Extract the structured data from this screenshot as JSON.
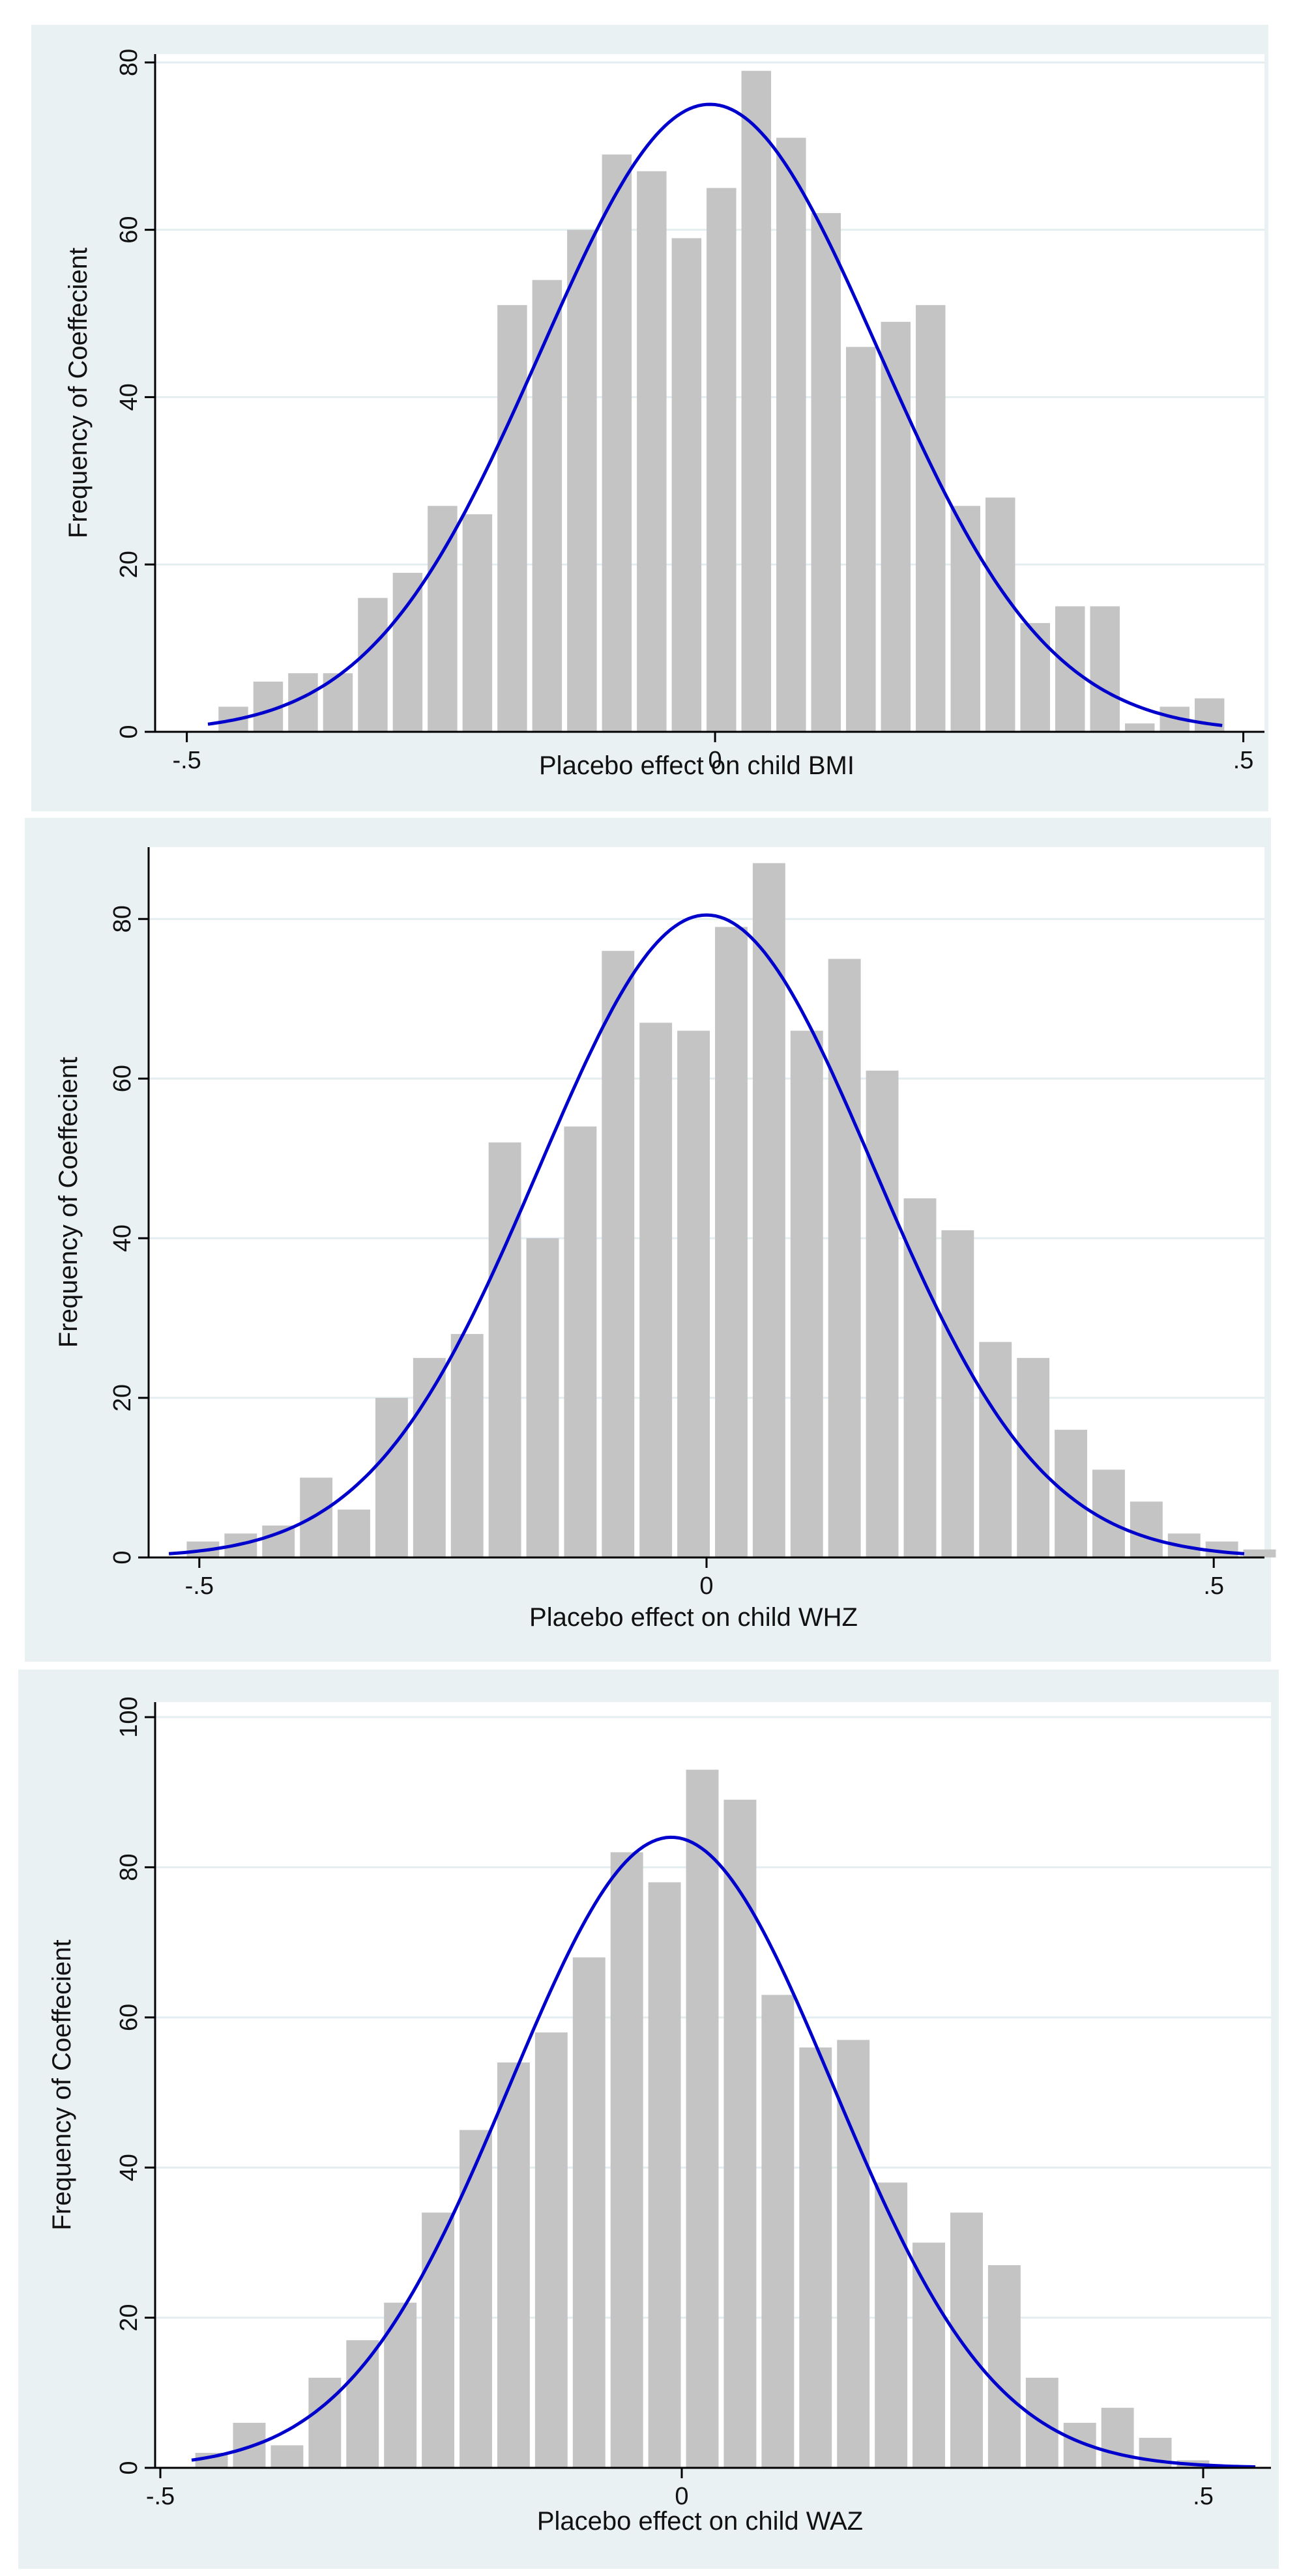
{
  "colors": {
    "panel_bg": "#eaf1f3",
    "plot_bg": "#ffffff",
    "bar": "#c4c4c4",
    "curve": "#0000cc",
    "grid": "#e4eef1",
    "axis": "#000000"
  },
  "chart_data": [
    {
      "type": "bar",
      "title": "",
      "xlabel": "Placebo effect on child BMI",
      "ylabel": "Frequency of Coeffecient",
      "xlim": [
        -0.53,
        0.52
      ],
      "ylim": [
        0,
        81
      ],
      "xticks": [
        -0.5,
        0,
        0.5
      ],
      "xtick_labels": [
        "-.5",
        "0",
        ".5"
      ],
      "yticks": [
        0,
        20,
        40,
        60,
        80
      ],
      "ytick_labels": [
        "0",
        "20",
        "40",
        "60",
        "80"
      ],
      "grid": true,
      "bin_start": -0.4725,
      "bin_width": 0.033,
      "values": [
        3,
        6,
        7,
        7,
        16,
        19,
        27,
        26,
        51,
        54,
        60,
        69,
        67,
        59,
        65,
        79,
        71,
        62,
        46,
        49,
        51,
        27,
        28,
        13,
        15,
        15,
        1,
        3,
        4
      ],
      "series": [
        {
          "name": "normal density",
          "type": "line",
          "mean": -0.005,
          "sd": 0.16,
          "peak": 75,
          "x_range": [
            -0.48,
            0.48
          ]
        }
      ]
    },
    {
      "type": "bar",
      "title": "",
      "xlabel": "Placebo effect on child WHZ",
      "ylabel": "Frequency of Coeffecient",
      "xlim": [
        -0.55,
        0.55
      ],
      "ylim": [
        0,
        89
      ],
      "xticks": [
        -0.5,
        0,
        0.5
      ],
      "xtick_labels": [
        "-.5",
        "0",
        ".5"
      ],
      "yticks": [
        0,
        20,
        40,
        60,
        80
      ],
      "ytick_labels": [
        "0",
        "20",
        "40",
        "60",
        "80"
      ],
      "grid": true,
      "bin_start": -0.515,
      "bin_width": 0.0372,
      "values": [
        2,
        3,
        4,
        10,
        6,
        20,
        25,
        28,
        52,
        40,
        54,
        76,
        67,
        66,
        79,
        87,
        66,
        75,
        61,
        45,
        41,
        27,
        25,
        16,
        11,
        7,
        3,
        2,
        1
      ],
      "series": [
        {
          "name": "normal density",
          "type": "line",
          "mean": 0.0,
          "sd": 0.165,
          "peak": 80.5,
          "x_range": [
            -0.53,
            0.53
          ]
        }
      ]
    },
    {
      "type": "bar",
      "title": "",
      "xlabel": "Placebo effect on child WAZ",
      "ylabel": "Frequency of Coeffecient",
      "xlim": [
        -0.505,
        0.565
      ],
      "ylim": [
        0,
        102
      ],
      "xticks": [
        -0.5,
        0,
        0.5
      ],
      "xtick_labels": [
        "-.5",
        "0",
        ".5"
      ],
      "yticks": [
        0,
        20,
        40,
        60,
        80,
        100
      ],
      "ytick_labels": [
        "0",
        "20",
        "40",
        "60",
        "80",
        "100"
      ],
      "grid": true,
      "bin_start": -0.469,
      "bin_width": 0.0362,
      "values": [
        2,
        6,
        3,
        12,
        17,
        22,
        34,
        45,
        54,
        58,
        68,
        82,
        78,
        93,
        89,
        63,
        56,
        57,
        38,
        30,
        34,
        27,
        12,
        6,
        8,
        4,
        1
      ],
      "series": [
        {
          "name": "normal density",
          "type": "line",
          "mean": -0.01,
          "sd": 0.155,
          "peak": 84,
          "x_range": [
            -0.47,
            0.55
          ]
        }
      ]
    }
  ]
}
